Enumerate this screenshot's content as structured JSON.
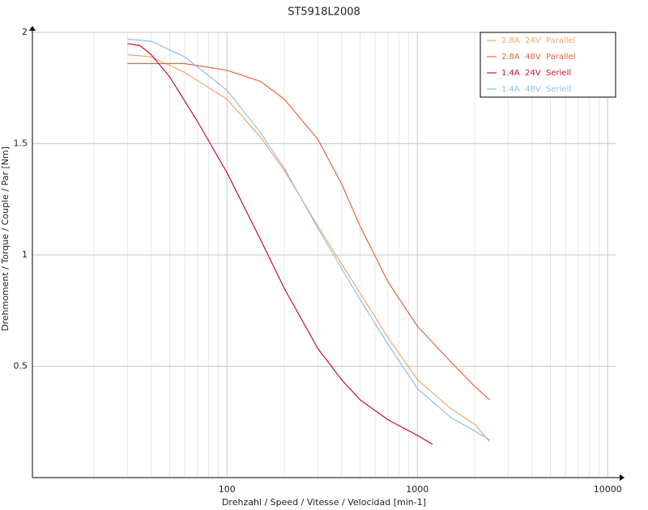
{
  "chart_data": {
    "type": "line",
    "title": "ST5918L2008",
    "x_label": "Drehzahl / Speed / Vitesse / Velocidad [min-1]",
    "y_label": "Drehmoment / Torque / Couple / Par [Nm]",
    "log_x": true,
    "grid": true,
    "legend": "top-right",
    "xlim": [
      9.5,
      11000
    ],
    "ylim": [
      0,
      2
    ],
    "xticks": [
      100,
      1000,
      10000
    ],
    "xminorticks": [
      20,
      30,
      40,
      50,
      60,
      70,
      80,
      90,
      200,
      300,
      400,
      500,
      600,
      700,
      800,
      900,
      2000,
      3000,
      4000,
      5000,
      6000,
      7000,
      8000,
      9000
    ],
    "yticks": [
      0.5,
      1,
      1.5,
      2
    ],
    "series": [
      {
        "name": "2.8A  24V  Parallel",
        "color": "#f5a66a",
        "x": [
          30,
          40,
          60,
          100,
          150,
          200,
          300,
          400,
          500,
          700,
          1000,
          1500,
          2000,
          2400
        ],
        "values": [
          1.9,
          1.89,
          1.82,
          1.7,
          1.53,
          1.38,
          1.13,
          0.96,
          0.83,
          0.63,
          0.44,
          0.31,
          0.24,
          0.16
        ]
      },
      {
        "name": "2.8A  48V  Parallel",
        "color": "#e8643c",
        "x": [
          30,
          60,
          100,
          150,
          200,
          300,
          400,
          500,
          700,
          1000,
          1500,
          2000,
          2400
        ],
        "values": [
          1.86,
          1.86,
          1.83,
          1.78,
          1.7,
          1.52,
          1.32,
          1.13,
          0.88,
          0.68,
          0.52,
          0.41,
          0.35
        ]
      },
      {
        "name": "1.4A  24V  Seriell",
        "color": "#c8102e",
        "x": [
          30,
          35,
          40,
          50,
          70,
          100,
          150,
          200,
          300,
          400,
          500,
          700,
          1000,
          1200
        ],
        "values": [
          1.95,
          1.94,
          1.9,
          1.8,
          1.6,
          1.37,
          1.07,
          0.85,
          0.58,
          0.44,
          0.35,
          0.26,
          0.19,
          0.15
        ]
      },
      {
        "name": "1.4A  48V  Seriell",
        "color": "#8cc0ec",
        "x": [
          30,
          40,
          60,
          100,
          150,
          200,
          300,
          400,
          500,
          700,
          1000,
          1500,
          2000,
          2400
        ],
        "values": [
          1.97,
          1.96,
          1.89,
          1.74,
          1.55,
          1.39,
          1.12,
          0.94,
          0.8,
          0.6,
          0.4,
          0.27,
          0.21,
          0.17
        ]
      }
    ]
  }
}
